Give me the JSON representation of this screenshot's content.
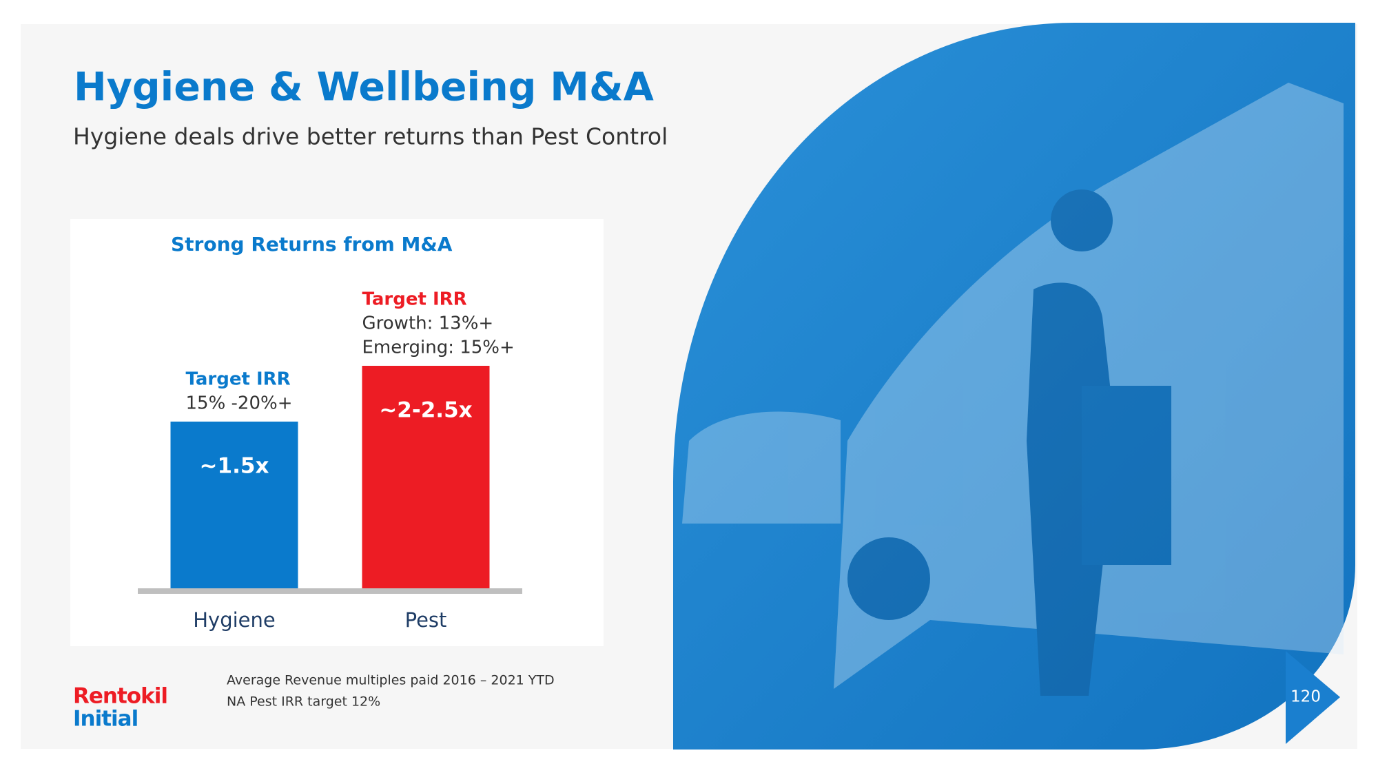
{
  "header": {
    "title": "Hygiene & Wellbeing M&A",
    "subtitle": "Hygiene deals drive better returns than Pest Control"
  },
  "chart_data": {
    "type": "bar",
    "title": "Strong Returns from M&A",
    "categories": [
      "Hygiene",
      "Pest"
    ],
    "values": [
      1.5,
      2
    ],
    "value_labels": [
      "~1.5x",
      "~2-2.5x"
    ],
    "colors": [
      "#0a7acc",
      "#ed1c24"
    ],
    "ylim": [
      0,
      3
    ],
    "annotations": [
      {
        "heading": "Target IRR",
        "lines": [
          "15% -20%+"
        ]
      },
      {
        "heading": "Target IRR",
        "lines": [
          "Growth: 13%+",
          "Emerging: 15%+"
        ]
      }
    ]
  },
  "footnotes": [
    "Average Revenue multiples paid 2016 – 2021 YTD",
    "NA Pest IRR target 12%"
  ],
  "logo": {
    "line1": "Rentokil",
    "line2": "Initial"
  },
  "page_number": "120"
}
